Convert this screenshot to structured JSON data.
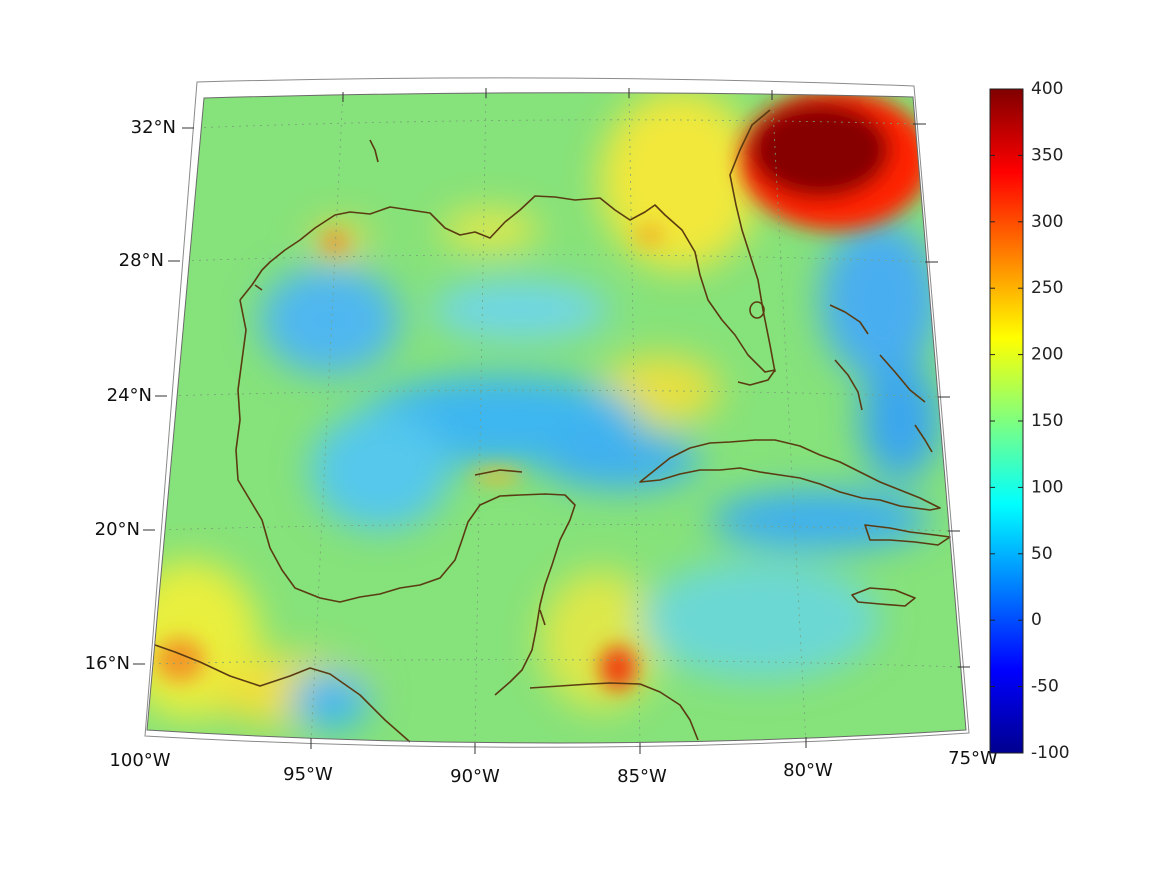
{
  "map": {
    "lon_labels": [
      "100°W",
      "95°W",
      "90°W",
      "85°W",
      "80°W",
      "75°W"
    ],
    "lat_labels": [
      "16°N",
      "20°N",
      "24°N",
      "28°N",
      "32°N"
    ],
    "lon_range_deg": [
      -100,
      -75
    ],
    "lat_range_deg": [
      14,
      33
    ],
    "projection": "conic",
    "grid": "dotted"
  },
  "colorbar": {
    "min": -100,
    "max": 400,
    "tick_labels": [
      "400",
      "350",
      "300",
      "250",
      "200",
      "150",
      "100",
      "50",
      "0",
      "-50",
      "-100"
    ],
    "colormap": "jet"
  },
  "colors": {
    "coastline": "#5a3b12",
    "dominant_field": "#7de07a",
    "high": "#7f0000",
    "low": "#1060ff"
  }
}
